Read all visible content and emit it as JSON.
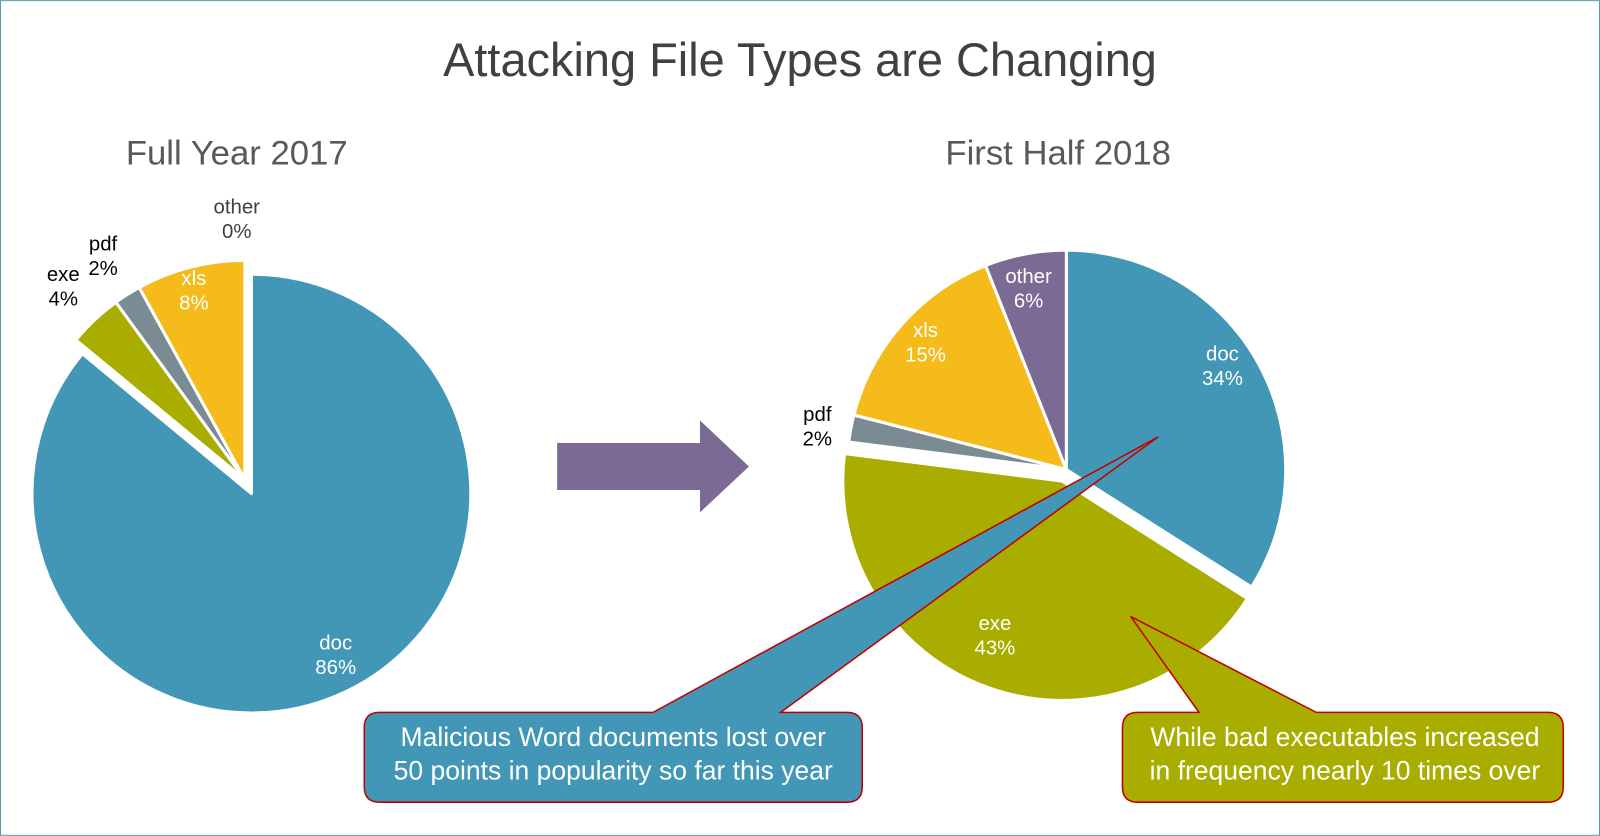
{
  "title": "Attacking File Types are Changing",
  "chart_data": [
    {
      "type": "pie",
      "title": "Full Year 2017",
      "categories": [
        "doc",
        "exe",
        "pdf",
        "xls",
        "other"
      ],
      "values": [
        86,
        4,
        2,
        8,
        0
      ],
      "value_labels": [
        "86%",
        "4%",
        "2%",
        "8%",
        "0%"
      ],
      "colors": [
        "#4397b6",
        "#a8ad00",
        "#7a8b94",
        "#f4bb1b",
        "#7b6a93"
      ]
    },
    {
      "type": "pie",
      "title": "First Half 2018",
      "categories": [
        "doc",
        "exe",
        "pdf",
        "xls",
        "other"
      ],
      "values": [
        34,
        43,
        2,
        15,
        6
      ],
      "value_labels": [
        "34%",
        "43%",
        "2%",
        "15%",
        "6%"
      ],
      "colors": [
        "#4397b6",
        "#a8ad00",
        "#7a8b94",
        "#f4bb1b",
        "#7b6a93"
      ]
    }
  ],
  "annotations": [
    [
      "Malicious Word documents lost over",
      "50 points in popularity so far this year"
    ],
    [
      "While bad executables increased",
      "in frequency nearly 10 times over"
    ]
  ]
}
